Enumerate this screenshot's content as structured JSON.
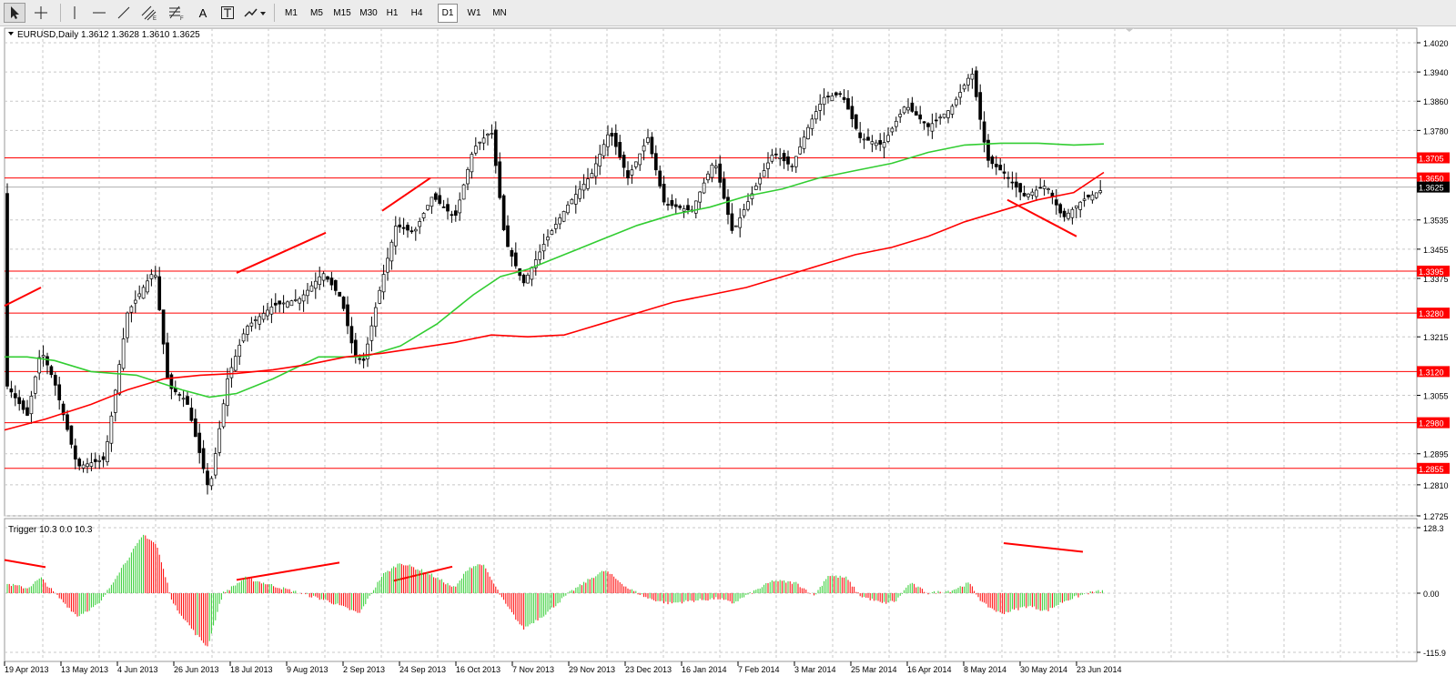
{
  "toolbar": {
    "tools": [
      {
        "name": "cursor-tool",
        "icon": "cursor-arrow-icon"
      },
      {
        "name": "crosshair-tool",
        "icon": "crosshair-icon"
      },
      {
        "name": "vertical-line-tool",
        "icon": "vertical-line-icon"
      },
      {
        "name": "horizontal-line-tool",
        "icon": "horizontal-line-icon"
      },
      {
        "name": "trendline-tool",
        "icon": "trendline-icon"
      },
      {
        "name": "equidistant-channel-tool",
        "icon": "channel-icon"
      },
      {
        "name": "fibonacci-tool",
        "icon": "fibonacci-icon"
      },
      {
        "name": "text-tool",
        "icon": "text-icon"
      },
      {
        "name": "text-label-tool",
        "icon": "text-label-icon"
      },
      {
        "name": "arrows-tool",
        "icon": "arrows-icon"
      }
    ],
    "text_tool_label": "A",
    "timeframes": [
      "M1",
      "M5",
      "M15",
      "M30",
      "H1",
      "H4",
      "D1",
      "W1",
      "MN"
    ],
    "active_timeframe": "D1"
  },
  "main_chart": {
    "symbol_info": "EURUSD,Daily  1.3612 1.3628 1.3610 1.3625",
    "y_ticks": [
      "1.4020",
      "1.3940",
      "1.3860",
      "1.3780",
      "1.3535",
      "1.3455",
      "1.3375",
      "1.3215",
      "1.3055",
      "1.2895",
      "1.2810",
      "1.2725"
    ],
    "current_price": "1.3625",
    "levels": [
      {
        "label": "1.3705",
        "value": 1.3705
      },
      {
        "label": "1.3650",
        "value": 1.365
      },
      {
        "label": "1.3395",
        "value": 1.3395
      },
      {
        "label": "1.3280",
        "value": 1.328
      },
      {
        "label": "1.3120",
        "value": 1.312
      },
      {
        "label": "1.2980",
        "value": 1.298
      },
      {
        "label": "1.2855",
        "value": 1.2855
      }
    ],
    "colors": {
      "up_candle": "#ffffff",
      "down_candle": "#000000",
      "ma_fast": "#32cd32",
      "ma_slow": "#ff0000",
      "levels": "#ff0000",
      "trend_lines": "#ff0000",
      "grid": "#c8c8c8"
    }
  },
  "indicator": {
    "title": "Trigger 10.3 0.0 10.3",
    "y_ticks": [
      "128.3",
      "0.00",
      "-115.9"
    ],
    "colors": {
      "positive": "#32cd32",
      "negative": "#ff0000"
    }
  },
  "x_axis": {
    "labels": [
      "19 Apr 2013",
      "13 May 2013",
      "4 Jun 2013",
      "26 Jun 2013",
      "18 Jul 2013",
      "9 Aug 2013",
      "2 Sep 2013",
      "24 Sep 2013",
      "16 Oct 2013",
      "7 Nov 2013",
      "29 Nov 2013",
      "23 Dec 2013",
      "16 Jan 2014",
      "7 Feb 2014",
      "3 Mar 2014",
      "25 Mar 2014",
      "16 Apr 2014",
      "8 May 2014",
      "30 May 2014",
      "23 Jun 2014"
    ]
  }
}
